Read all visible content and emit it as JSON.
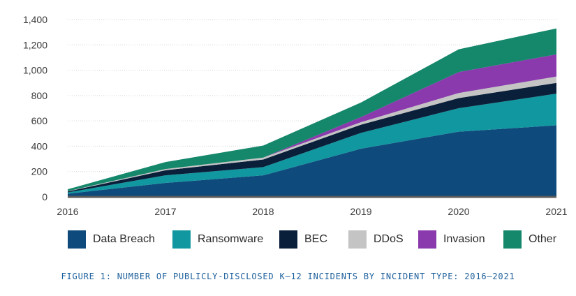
{
  "chart_data": {
    "type": "area",
    "stacked": true,
    "categories": [
      "2016",
      "2017",
      "2018",
      "2019",
      "2020",
      "2021"
    ],
    "ylim": [
      0,
      1400
    ],
    "yticks": [
      0,
      200,
      400,
      600,
      800,
      1000,
      1200,
      1400
    ],
    "ytick_labels": [
      "0",
      "200",
      "400",
      "600",
      "800",
      "1,000",
      "1,200",
      "1,400"
    ],
    "grid": true,
    "legend_position": "bottom",
    "series": [
      {
        "name": "Data Breach",
        "color": "#0e4a7c",
        "values": [
          25,
          110,
          170,
          380,
          515,
          565
        ]
      },
      {
        "name": "Ransomware",
        "color": "#11979f",
        "values": [
          10,
          60,
          65,
          125,
          185,
          250
        ]
      },
      {
        "name": "BEC",
        "color": "#0a1f3a",
        "values": [
          8,
          40,
          60,
          65,
          80,
          85
        ]
      },
      {
        "name": "DDoS",
        "color": "#c4c4c4",
        "values": [
          2,
          10,
          15,
          20,
          40,
          50
        ]
      },
      {
        "name": "Invasion",
        "color": "#8a3aad",
        "values": [
          0,
          0,
          0,
          40,
          165,
          175
        ]
      },
      {
        "name": "Other",
        "color": "#15876b",
        "values": [
          15,
          55,
          95,
          115,
          180,
          205
        ]
      }
    ],
    "caption": "FIGURE 1: NUMBER OF PUBLICLY-DISCLOSED K–12 INCIDENTS BY INCIDENT TYPE: 2016–2021"
  }
}
